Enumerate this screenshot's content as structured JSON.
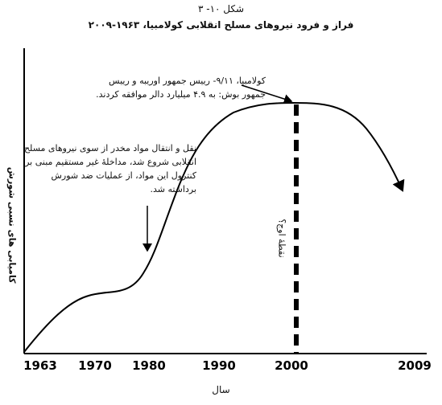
{
  "header": {
    "figure": "شکل ۱۰- ۳",
    "title": "فراز و فرود نیروهای مسلح انقلابی کولامبیا، ۱۹۶۳-۲۰۰۹"
  },
  "annotations": {
    "peak_event": [
      "کولامبیا، ۹/۱۱- رییس جمهور اوریبه و رییس",
      "جمهور بوش: به ۴.۹ میلیارد دالر موافقه کردند."
    ],
    "drug_trade": [
      "نقل و انتقال مواد مخدر از سوی نیروهای مسلح",
      "انقلابی شروع شد، مداخلهٔ غیر مستقیم مبنی بر",
      "کنترول این مواد، از عملیات ضد شورش",
      "برداشته شد."
    ],
    "peak_point": "نقطهٔ اوج؟"
  },
  "axes": {
    "y_label": "کامیابی های نسبی شورش",
    "x_label": "سال",
    "x_tick_labels": [
      "1963",
      "1970",
      "1980",
      "1990",
      "2000",
      "2009"
    ]
  }
}
